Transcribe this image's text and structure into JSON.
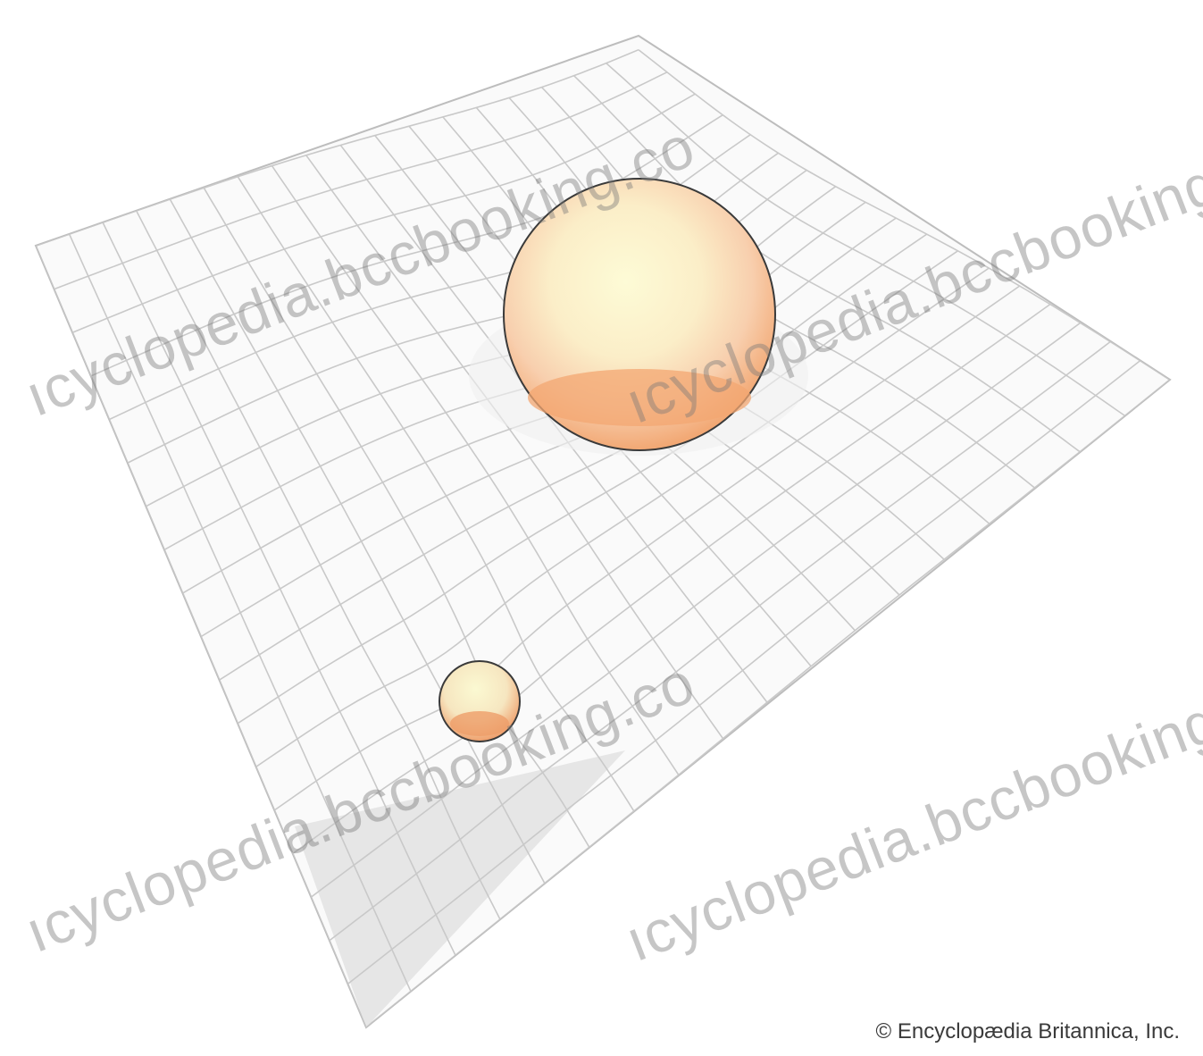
{
  "watermarks": [
    "ıcyclopedia.bccbooking.co",
    "ıcyclopedia.bccbooking.co",
    "ıcyclopedia.bccbooking.co",
    "ıcyclopedia.bccbooking.co"
  ],
  "credit": "© Encyclopædia Britannica, Inc.",
  "colors": {
    "grid_line": "#c9c9c9",
    "sheet_fill": "#fafafa",
    "sheet_shadow": "#e4e4e4",
    "body_highlight": "#fbf8cf",
    "body_mid": "#f7d6b8",
    "body_shade": "#f1a873",
    "outline": "#333333"
  }
}
